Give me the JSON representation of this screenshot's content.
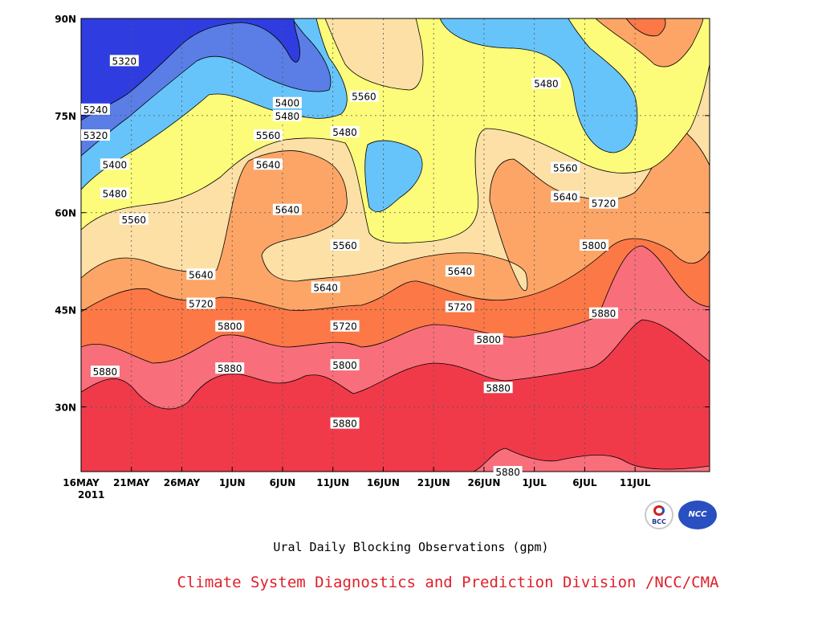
{
  "chart_data": {
    "type": "heatmap",
    "title": "Ural Daily Blocking Observations (gpm)",
    "credit": "Climate System Diagnostics and Prediction Division /NCC/CMA",
    "logos": [
      "BCC",
      "NCC"
    ],
    "year_label": "2011",
    "x_ticks": [
      "16MAY",
      "21MAY",
      "26MAY",
      "1JUN",
      "6JUN",
      "11JUN",
      "16JUN",
      "21JUN",
      "26JUN",
      "1JUL",
      "6JUL",
      "11JUL"
    ],
    "y_ticks": [
      "30N",
      "45N",
      "60N",
      "75N",
      "90N"
    ],
    "xlim": [
      "2011-05-16",
      "2011-07-14"
    ],
    "ylim": [
      20,
      90
    ],
    "grid": "dotted",
    "contour_levels": [
      5240,
      5320,
      5400,
      5480,
      5560,
      5640,
      5720,
      5800,
      5880
    ],
    "contour_labels": [
      {
        "date": "2011-05-19",
        "lat": 83.5,
        "text": "5320"
      },
      {
        "date": "2011-05-16",
        "lat": 76.0,
        "text": "5240"
      },
      {
        "date": "2011-05-16",
        "lat": 72.0,
        "text": "5320"
      },
      {
        "date": "2011-05-18",
        "lat": 67.5,
        "text": "5400"
      },
      {
        "date": "2011-05-18",
        "lat": 63.0,
        "text": "5480"
      },
      {
        "date": "2011-05-20",
        "lat": 59.0,
        "text": "5560"
      },
      {
        "date": "2011-05-27",
        "lat": 50.5,
        "text": "5640"
      },
      {
        "date": "2011-05-27",
        "lat": 46.0,
        "text": "5720"
      },
      {
        "date": "2011-05-30",
        "lat": 42.5,
        "text": "5800"
      },
      {
        "date": "2011-05-17",
        "lat": 35.5,
        "text": "5880"
      },
      {
        "date": "2011-05-30",
        "lat": 36.0,
        "text": "5880"
      },
      {
        "date": "2011-06-05",
        "lat": 77.0,
        "text": "5400"
      },
      {
        "date": "2011-06-05",
        "lat": 75.0,
        "text": "5480"
      },
      {
        "date": "2011-06-03",
        "lat": 72.0,
        "text": "5560"
      },
      {
        "date": "2011-06-03",
        "lat": 67.5,
        "text": "5640"
      },
      {
        "date": "2011-06-05",
        "lat": 60.5,
        "text": "5640"
      },
      {
        "date": "2011-06-13",
        "lat": 78.0,
        "text": "5560"
      },
      {
        "date": "2011-06-11",
        "lat": 72.5,
        "text": "5480"
      },
      {
        "date": "2011-06-11",
        "lat": 55.0,
        "text": "5560"
      },
      {
        "date": "2011-06-09",
        "lat": 48.5,
        "text": "5640"
      },
      {
        "date": "2011-06-11",
        "lat": 42.5,
        "text": "5720"
      },
      {
        "date": "2011-06-11",
        "lat": 36.5,
        "text": "5800"
      },
      {
        "date": "2011-06-11",
        "lat": 27.5,
        "text": "5880"
      },
      {
        "date": "2011-06-23",
        "lat": 51.0,
        "text": "5640"
      },
      {
        "date": "2011-06-23",
        "lat": 45.5,
        "text": "5720"
      },
      {
        "date": "2011-06-26",
        "lat": 40.5,
        "text": "5800"
      },
      {
        "date": "2011-06-27",
        "lat": 33.0,
        "text": "5880"
      },
      {
        "date": "2011-06-28",
        "lat": 20.0,
        "text": "5880"
      },
      {
        "date": "2011-07-02",
        "lat": 80.0,
        "text": "5480"
      },
      {
        "date": "2011-07-04",
        "lat": 67.0,
        "text": "5560"
      },
      {
        "date": "2011-07-04",
        "lat": 62.5,
        "text": "5640"
      },
      {
        "date": "2011-07-08",
        "lat": 61.5,
        "text": "5720"
      },
      {
        "date": "2011-07-07",
        "lat": 55.0,
        "text": "5800"
      },
      {
        "date": "2011-07-08",
        "lat": 44.5,
        "text": "5880"
      }
    ],
    "colors": {
      "lt5320": "#2f3de0",
      "5320_5400": "#5a7ee6",
      "5400_5480": "#66c4fa",
      "5480_5560": "#fcfc7a",
      "5560_5640": "#fce0a6",
      "5640_5720": "#fca566",
      "5720_5800": "#fc7846",
      "5800_5880": "#f86e7a",
      "gt5880": "#f03a4a"
    }
  }
}
